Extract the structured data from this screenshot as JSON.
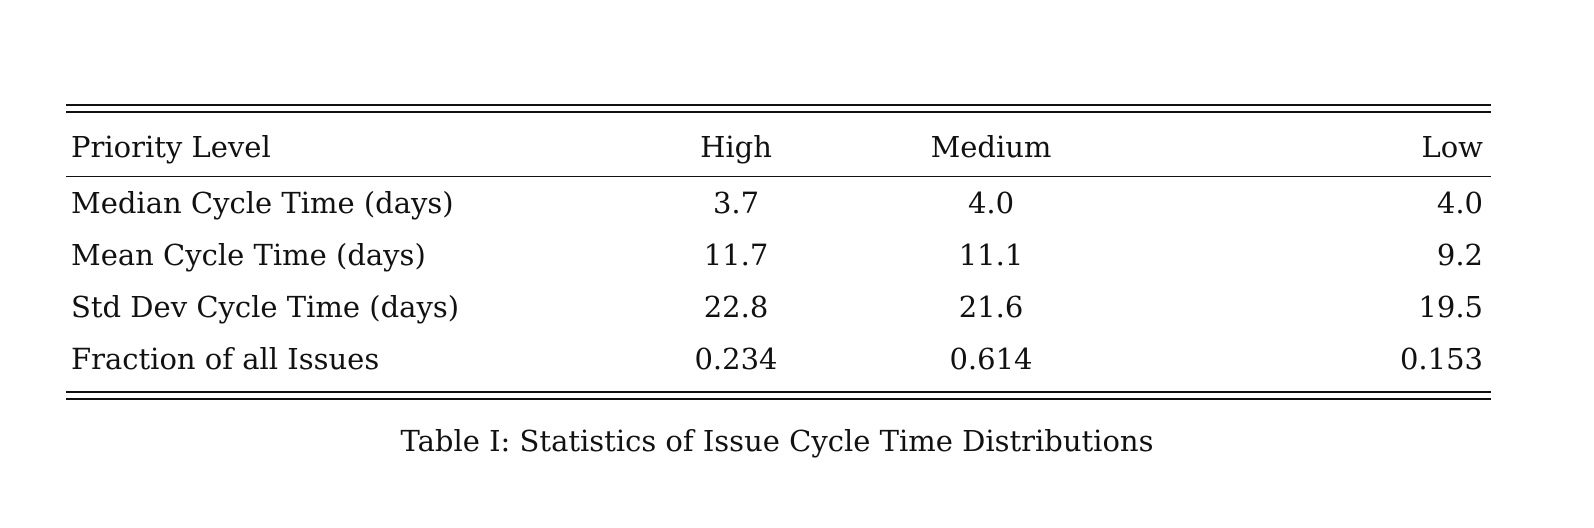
{
  "table": {
    "headers": [
      "Priority Level",
      "High",
      "Medium",
      "Low"
    ],
    "rows": [
      [
        "Median Cycle Time (days)",
        "3.7",
        "4.0",
        "4.0"
      ],
      [
        "Mean Cycle Time (days)",
        "11.7",
        "11.1",
        "9.2"
      ],
      [
        "Std Dev Cycle Time (days)",
        "22.8",
        "21.6",
        "19.5"
      ],
      [
        "Fraction of all Issues",
        "0.234",
        "0.614",
        "0.153"
      ]
    ]
  },
  "caption": "Table I: Statistics of Issue Cycle Time Distributions"
}
